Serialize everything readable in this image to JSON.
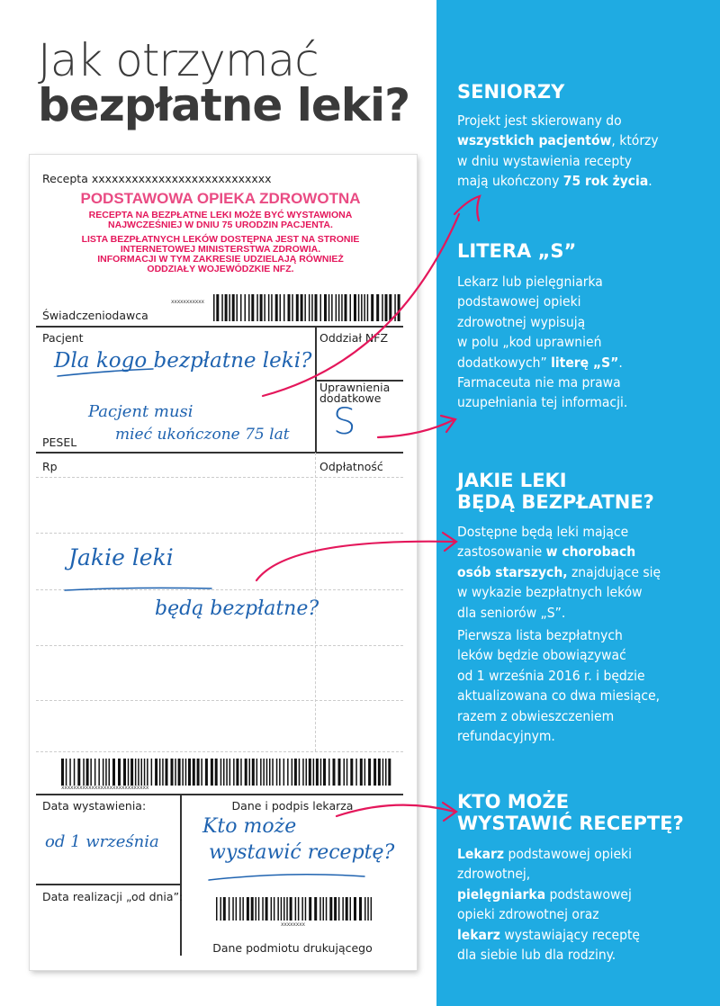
{
  "title": {
    "line1": "Jak otrzymać",
    "line2": "bezpłatne leki?"
  },
  "colors": {
    "panel": "#1fabe2",
    "arrow": "#e4175b",
    "handwriting": "#1f63b0",
    "stamp": "#e4175b"
  },
  "prescription": {
    "recepta": "Recepta xxxxxxxxxxxxxxxxxxxxxxxxxxx",
    "stamp": {
      "title": "PODSTAWOWA OPIEKA ZDROWOTNA",
      "lines": [
        "RECEPTA NA BEZPŁATNE LEKI MOŻE BYĆ WYSTAWIONA",
        "NAJWCZEŚNIEJ W DNIU 75 URODZIN PACJENTA.",
        "LISTA BEZPŁATNYCH LEKÓW DOSTĘPNA JEST NA STRONIE",
        "INTERNETOWEJ MINISTERSTWA ZDROWIA.",
        "INFORMACJI W TYM ZAKRESIE UDZIELAJĄ RÓWNIEŻ",
        "ODDZIAŁY WOJEWÓDZKIE NFZ."
      ]
    },
    "barcode1_text": "xxxxxxxxxxx",
    "swiadczeniodawca": "Świadczeniodawca",
    "pacjent": "Pacjent",
    "oddzial": "Oddział NFZ",
    "uprawnienia1": "Uprawnienia",
    "uprawnienia2": "dodatkowe",
    "pesel": "PESEL",
    "rp": "Rp",
    "odplatnosc": "Odpłatność",
    "barcode2_text": "xxxxxxxxxxxxxxxxxxxxxxxxxxxxx",
    "data_wystawienia": "Data wystawienia:",
    "dane_lekarza": "Dane i podpis lekarza",
    "data_realizacji": "Data realizacji „od dnia”:",
    "barcode3_text": "xxxxxxxx",
    "dane_podmiotu": "Dane podmiotu drukującego",
    "handwriting": {
      "patient_q": "Dla kogo bezpłatne leki?",
      "age1": "Pacjent musi",
      "age2": "mieć ukończone 75 lat",
      "letter": "S",
      "drugs1": "Jakie leki",
      "drugs2": "będą bezpłatne?",
      "date": "od 1 września",
      "who1": "Kto może",
      "who2": "wystawić receptę?"
    }
  },
  "sections": {
    "seniorzy": {
      "heading": [
        "SENIORZY"
      ],
      "paras": [
        [
          [
            [
              "Projekt jest skierowany do",
              0
            ]
          ],
          [
            [
              "wszystkich pacjentów",
              1
            ],
            [
              ", którzy",
              0
            ]
          ],
          [
            [
              "w dniu wystawienia recepty",
              0
            ]
          ],
          [
            [
              "mają ukończony ",
              0
            ],
            [
              "75 rok życia",
              1
            ],
            [
              ".",
              0
            ]
          ]
        ]
      ]
    },
    "litera": {
      "heading": [
        "LITERA „S”"
      ],
      "paras": [
        [
          [
            [
              "Lekarz lub pielęgniarka",
              0
            ]
          ],
          [
            [
              "podstawowej opieki",
              0
            ]
          ],
          [
            [
              "zdrowotnej wypisują",
              0
            ]
          ],
          [
            [
              "w polu „kod uprawnień",
              0
            ]
          ],
          [
            [
              "dodatkowych” ",
              0
            ],
            [
              "literę „S”",
              1
            ],
            [
              ".",
              0
            ]
          ],
          [
            [
              "Farmaceuta nie ma prawa",
              0
            ]
          ],
          [
            [
              "uzupełniania tej informacji.",
              0
            ]
          ]
        ]
      ]
    },
    "leki": {
      "heading": [
        "JAKIE LEKI",
        "BĘDĄ BEZPŁATNE?"
      ],
      "paras": [
        [
          [
            [
              "Dostępne będą leki mające",
              0
            ]
          ],
          [
            [
              "zastosowanie ",
              0
            ],
            [
              "w chorobach",
              1
            ]
          ],
          [
            [
              "osób starszych,",
              1
            ],
            [
              " znajdujące się",
              0
            ]
          ],
          [
            [
              "w wykazie bezpłatnych leków",
              0
            ]
          ],
          [
            [
              "dla seniorów „S”.",
              0
            ]
          ]
        ],
        [
          [
            [
              "Pierwsza lista bezpłatnych",
              0
            ]
          ],
          [
            [
              "leków będzie obowiązywać",
              0
            ]
          ],
          [
            [
              "od 1 września 2016 r. i będzie",
              0
            ]
          ],
          [
            [
              "aktualizowana co dwa miesiące,",
              0
            ]
          ],
          [
            [
              "razem z obwieszczeniem",
              0
            ]
          ],
          [
            [
              "refundacyjnym.",
              0
            ]
          ]
        ]
      ]
    },
    "kto": {
      "heading": [
        "KTO MOŻE",
        "WYSTAWIĆ RECEPTĘ?"
      ],
      "paras": [
        [
          [
            [
              "Lekarz",
              1
            ],
            [
              " podstawowej opieki",
              0
            ]
          ],
          [
            [
              "zdrowotnej,",
              0
            ]
          ],
          [
            [
              "pielęgniarka",
              1
            ],
            [
              " podstawowej",
              0
            ]
          ],
          [
            [
              "opieki zdrowotnej oraz",
              0
            ]
          ],
          [
            [
              "lekarz",
              1
            ],
            [
              " wystawiający receptę",
              0
            ]
          ],
          [
            [
              "dla siebie lub dla rodziny.",
              0
            ]
          ]
        ]
      ]
    }
  }
}
